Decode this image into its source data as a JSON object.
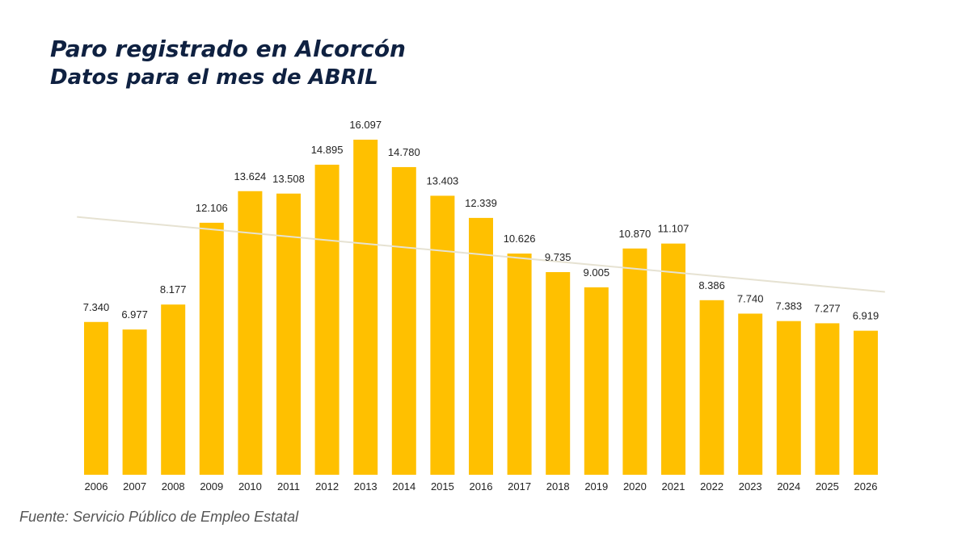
{
  "title": "Paro registrado en Alcorcón",
  "subtitle": "Datos para el mes de ABRIL",
  "source": "Fuente: Servicio Público de Empleo Estatal",
  "colors": {
    "bar": "#ffc000",
    "trend": "#e6e2d2",
    "title": "#0f2141"
  },
  "chart_data": {
    "type": "bar",
    "categories": [
      "2006",
      "2007",
      "2008",
      "2009",
      "2010",
      "2011",
      "2012",
      "2013",
      "2014",
      "2015",
      "2016",
      "2017",
      "2018",
      "2019",
      "2020",
      "2021",
      "2022",
      "2023",
      "2024",
      "2025",
      "2026"
    ],
    "values": [
      7340,
      6977,
      8177,
      12106,
      13624,
      13508,
      14895,
      16097,
      14780,
      13403,
      12339,
      10626,
      9735,
      9005,
      10870,
      11107,
      8386,
      7740,
      7383,
      7277,
      6919
    ],
    "value_labels": [
      "7.340",
      "6.977",
      "8.177",
      "12.106",
      "13.624",
      "13.508",
      "14.895",
      "16.097",
      "14.780",
      "13.403",
      "12.339",
      "10.626",
      "9.735",
      "9.005",
      "10.870",
      "11.107",
      "8.386",
      "7.740",
      "7.383",
      "7.277",
      "6.919"
    ],
    "ylim": [
      0,
      16097
    ],
    "trendline": {
      "type": "linear",
      "shown": true
    },
    "grid": false,
    "legend": "none"
  }
}
